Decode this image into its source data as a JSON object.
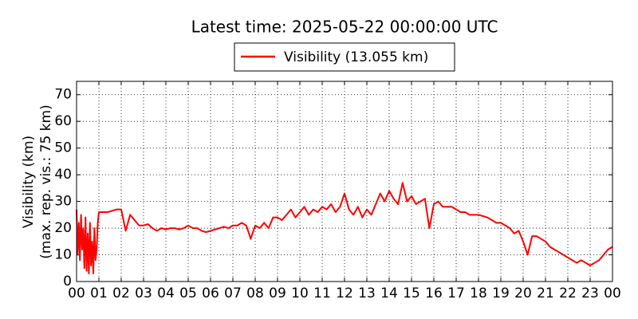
{
  "chart_data": {
    "type": "line",
    "title": "Latest time: 2025-05-22 00:00:00 UTC",
    "ylabel": [
      "Visibility (km)",
      "(max. rep. vis.: 75 km)"
    ],
    "grid": true,
    "legend": "upper center",
    "xlim": [
      0,
      24
    ],
    "ylim": [
      0,
      75
    ],
    "yticks": [
      0,
      10,
      20,
      30,
      40,
      50,
      60,
      70
    ],
    "xticks": [
      {
        "value": 0,
        "label": "00"
      },
      {
        "value": 1,
        "label": "01"
      },
      {
        "value": 2,
        "label": "02"
      },
      {
        "value": 3,
        "label": "03"
      },
      {
        "value": 4,
        "label": "04"
      },
      {
        "value": 5,
        "label": "05"
      },
      {
        "value": 6,
        "label": "06"
      },
      {
        "value": 7,
        "label": "07"
      },
      {
        "value": 8,
        "label": "08"
      },
      {
        "value": 9,
        "label": "09"
      },
      {
        "value": 10,
        "label": "10"
      },
      {
        "value": 11,
        "label": "11"
      },
      {
        "value": 12,
        "label": "12"
      },
      {
        "value": 13,
        "label": "13"
      },
      {
        "value": 14,
        "label": "14"
      },
      {
        "value": 15,
        "label": "15"
      },
      {
        "value": 16,
        "label": "16"
      },
      {
        "value": 17,
        "label": "17"
      },
      {
        "value": 18,
        "label": "18"
      },
      {
        "value": 19,
        "label": "19"
      },
      {
        "value": 20,
        "label": "20"
      },
      {
        "value": 21,
        "label": "21"
      },
      {
        "value": 22,
        "label": "22"
      },
      {
        "value": 23,
        "label": "23"
      },
      {
        "value": 24,
        "label": "00"
      }
    ],
    "x": [
      0,
      0.05,
      0.1,
      0.15,
      0.2,
      0.25,
      0.3,
      0.35,
      0.4,
      0.45,
      0.5,
      0.55,
      0.6,
      0.65,
      0.7,
      0.75,
      0.8,
      0.85,
      0.9,
      0.95,
      1.0,
      1.2,
      1.4,
      1.6,
      1.8,
      2.0,
      2.2,
      2.4,
      2.6,
      2.8,
      3.0,
      3.2,
      3.4,
      3.6,
      3.8,
      4.0,
      4.2,
      4.4,
      4.6,
      4.8,
      5.0,
      5.2,
      5.4,
      5.6,
      5.8,
      6.0,
      6.2,
      6.4,
      6.6,
      6.8,
      7.0,
      7.2,
      7.4,
      7.6,
      7.8,
      8.0,
      8.2,
      8.4,
      8.6,
      8.8,
      9.0,
      9.2,
      9.4,
      9.6,
      9.8,
      10.0,
      10.2,
      10.4,
      10.6,
      10.8,
      11.0,
      11.2,
      11.4,
      11.6,
      11.8,
      12.0,
      12.2,
      12.4,
      12.6,
      12.8,
      13.0,
      13.2,
      13.4,
      13.6,
      13.8,
      14.0,
      14.2,
      14.4,
      14.6,
      14.8,
      15.0,
      15.2,
      15.4,
      15.6,
      15.8,
      16.0,
      16.2,
      16.4,
      16.6,
      16.8,
      17.0,
      17.2,
      17.4,
      17.6,
      17.8,
      18.0,
      18.2,
      18.4,
      18.6,
      18.8,
      19.0,
      19.2,
      19.4,
      19.6,
      19.8,
      20.0,
      20.2,
      20.4,
      20.6,
      20.8,
      21.0,
      21.2,
      21.4,
      21.6,
      21.8,
      22.0,
      22.2,
      22.4,
      22.6,
      22.8,
      23.0,
      23.2,
      23.4,
      23.6,
      23.8,
      24.0
    ],
    "series": [
      {
        "name": "Visibility (13.055 km)",
        "color": "#ff0000",
        "values": [
          27,
          10,
          22,
          8,
          25,
          12,
          20,
          5,
          24,
          4,
          18,
          3,
          22,
          6,
          15,
          3,
          20,
          8,
          12,
          22,
          26,
          26,
          26,
          26.5,
          27,
          27,
          19,
          25,
          23,
          21,
          21,
          21.5,
          20,
          19,
          20,
          19.5,
          20,
          20,
          19.5,
          20,
          21,
          20,
          20,
          19,
          18.5,
          19,
          19.5,
          20,
          20.5,
          20,
          21,
          21,
          22,
          21,
          16,
          21,
          20,
          22,
          20,
          24,
          24,
          23,
          25,
          27,
          24,
          26,
          28,
          25,
          27,
          26,
          28,
          27,
          29,
          26,
          28,
          33,
          27,
          25,
          28,
          24,
          27,
          25,
          29,
          33,
          30,
          34,
          31,
          29,
          37,
          30,
          32,
          29,
          30,
          31,
          20,
          29,
          30,
          28,
          28,
          28,
          27,
          26,
          26,
          25,
          25,
          25,
          24.5,
          24,
          23,
          22,
          22,
          21,
          20,
          18,
          19,
          15,
          10,
          17,
          17,
          16,
          15,
          13,
          12,
          11,
          10,
          9,
          8,
          7,
          8,
          7,
          6,
          7,
          8,
          10,
          12,
          13
        ]
      }
    ]
  }
}
